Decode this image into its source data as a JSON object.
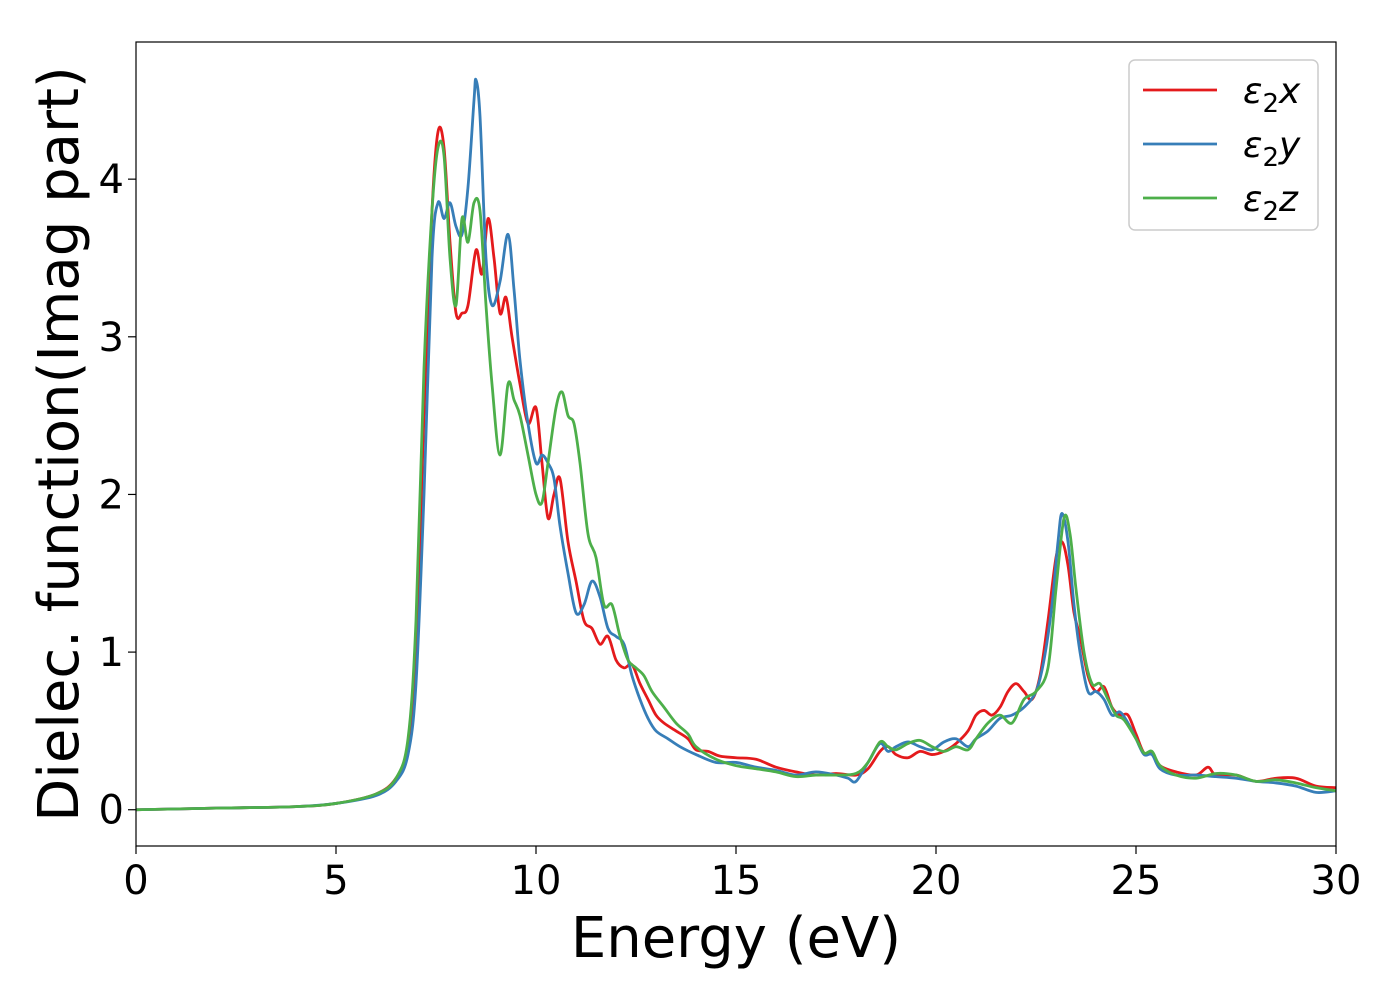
{
  "chart_data": {
    "type": "line",
    "title": "",
    "xlabel": "Energy (eV)",
    "ylabel": "Dielec. function(Imag part)",
    "xlim": [
      0,
      30
    ],
    "ylim": [
      -0.23,
      4.87
    ],
    "xticks": [
      0,
      5,
      10,
      15,
      20,
      25,
      30
    ],
    "yticks": [
      0,
      1,
      2,
      3,
      4
    ],
    "grid": false,
    "legend_position": "top-right",
    "series": [
      {
        "name": "ε₂x",
        "legend_base": "ε",
        "legend_sub": "2",
        "legend_tail": "x",
        "color": "#e41a1c",
        "x": [
          0,
          2,
          4,
          5,
          6,
          6.5,
          6.8,
          7.0,
          7.2,
          7.4,
          7.55,
          7.7,
          7.85,
          8.0,
          8.15,
          8.3,
          8.5,
          8.65,
          8.8,
          8.95,
          9.1,
          9.25,
          9.4,
          9.6,
          9.8,
          10.0,
          10.15,
          10.3,
          10.45,
          10.6,
          10.8,
          11.0,
          11.2,
          11.4,
          11.6,
          11.8,
          12.0,
          12.2,
          12.4,
          12.6,
          12.8,
          13.0,
          13.2,
          13.5,
          13.8,
          14.0,
          14.3,
          14.6,
          15.0,
          15.5,
          16.0,
          16.5,
          17.0,
          17.5,
          18.0,
          18.3,
          18.6,
          18.8,
          19.0,
          19.3,
          19.6,
          19.9,
          20.2,
          20.5,
          20.8,
          21.0,
          21.2,
          21.4,
          21.6,
          21.8,
          22.0,
          22.2,
          22.4,
          22.6,
          22.8,
          23.0,
          23.15,
          23.3,
          23.45,
          23.6,
          23.8,
          24.0,
          24.2,
          24.4,
          24.6,
          24.8,
          25.0,
          25.2,
          25.4,
          25.6,
          26.0,
          26.5,
          26.8,
          27.0,
          27.5,
          28.0,
          28.5,
          29.0,
          29.5,
          30.0
        ],
        "y": [
          0.0,
          0.01,
          0.02,
          0.04,
          0.1,
          0.2,
          0.4,
          1.0,
          2.5,
          3.8,
          4.3,
          4.2,
          3.6,
          3.15,
          3.15,
          3.2,
          3.55,
          3.4,
          3.75,
          3.5,
          3.15,
          3.25,
          3.0,
          2.7,
          2.45,
          2.55,
          2.2,
          1.85,
          2.0,
          2.1,
          1.7,
          1.45,
          1.2,
          1.15,
          1.05,
          1.1,
          0.95,
          0.9,
          0.92,
          0.8,
          0.7,
          0.6,
          0.55,
          0.5,
          0.45,
          0.38,
          0.37,
          0.34,
          0.33,
          0.32,
          0.27,
          0.24,
          0.22,
          0.23,
          0.22,
          0.26,
          0.37,
          0.4,
          0.35,
          0.33,
          0.37,
          0.35,
          0.37,
          0.42,
          0.5,
          0.6,
          0.63,
          0.6,
          0.65,
          0.75,
          0.8,
          0.75,
          0.7,
          0.85,
          1.2,
          1.6,
          1.7,
          1.55,
          1.25,
          1.1,
          0.85,
          0.75,
          0.78,
          0.65,
          0.6,
          0.6,
          0.48,
          0.36,
          0.36,
          0.28,
          0.24,
          0.22,
          0.27,
          0.22,
          0.22,
          0.18,
          0.2,
          0.2,
          0.15,
          0.14
        ]
      },
      {
        "name": "ε₂y",
        "legend_base": "ε",
        "legend_sub": "2",
        "legend_tail": "y",
        "color": "#377eb8",
        "x": [
          0,
          2,
          4,
          5,
          6,
          6.5,
          6.8,
          7.0,
          7.2,
          7.4,
          7.55,
          7.7,
          7.85,
          8.0,
          8.15,
          8.3,
          8.45,
          8.5,
          8.6,
          8.75,
          8.9,
          9.1,
          9.3,
          9.45,
          9.6,
          9.8,
          10.0,
          10.15,
          10.3,
          10.45,
          10.6,
          10.8,
          11.0,
          11.2,
          11.4,
          11.6,
          11.8,
          12.0,
          12.2,
          12.4,
          12.6,
          12.8,
          13.0,
          13.3,
          13.6,
          14.0,
          14.5,
          15.0,
          15.5,
          16.0,
          16.5,
          17.0,
          17.5,
          17.8,
          18.0,
          18.3,
          18.6,
          18.8,
          19.0,
          19.3,
          19.6,
          19.9,
          20.2,
          20.5,
          20.8,
          21.0,
          21.3,
          21.6,
          21.9,
          22.2,
          22.5,
          22.7,
          22.9,
          23.05,
          23.15,
          23.3,
          23.45,
          23.6,
          23.8,
          24.0,
          24.2,
          24.4,
          24.6,
          24.8,
          25.0,
          25.2,
          25.4,
          25.6,
          26.0,
          26.5,
          27.0,
          27.5,
          28.0,
          28.5,
          29.0,
          29.5,
          30.0
        ],
        "y": [
          0.0,
          0.01,
          0.02,
          0.04,
          0.09,
          0.18,
          0.35,
          0.8,
          2.0,
          3.5,
          3.85,
          3.75,
          3.85,
          3.7,
          3.65,
          3.95,
          4.5,
          4.63,
          4.4,
          3.5,
          3.2,
          3.35,
          3.65,
          3.3,
          2.85,
          2.45,
          2.2,
          2.25,
          2.2,
          2.1,
          1.8,
          1.5,
          1.25,
          1.3,
          1.45,
          1.35,
          1.15,
          1.1,
          1.05,
          0.85,
          0.7,
          0.58,
          0.5,
          0.45,
          0.4,
          0.35,
          0.3,
          0.3,
          0.27,
          0.25,
          0.22,
          0.24,
          0.22,
          0.2,
          0.18,
          0.3,
          0.42,
          0.37,
          0.4,
          0.43,
          0.4,
          0.38,
          0.43,
          0.45,
          0.4,
          0.45,
          0.5,
          0.58,
          0.6,
          0.65,
          0.75,
          0.95,
          1.3,
          1.7,
          1.88,
          1.7,
          1.3,
          1.0,
          0.75,
          0.75,
          0.7,
          0.6,
          0.62,
          0.55,
          0.45,
          0.35,
          0.35,
          0.26,
          0.22,
          0.22,
          0.21,
          0.2,
          0.18,
          0.17,
          0.15,
          0.11,
          0.12
        ]
      },
      {
        "name": "ε₂z",
        "legend_base": "ε",
        "legend_sub": "2",
        "legend_tail": "z",
        "color": "#4daf4a",
        "x": [
          0,
          2,
          4,
          5,
          6,
          6.5,
          6.8,
          7.0,
          7.2,
          7.4,
          7.55,
          7.7,
          7.85,
          8.0,
          8.15,
          8.3,
          8.45,
          8.6,
          8.75,
          8.9,
          9.1,
          9.3,
          9.45,
          9.6,
          9.8,
          10.0,
          10.15,
          10.3,
          10.5,
          10.65,
          10.8,
          10.95,
          11.1,
          11.3,
          11.5,
          11.7,
          11.9,
          12.1,
          12.3,
          12.5,
          12.7,
          12.9,
          13.2,
          13.5,
          13.8,
          14.0,
          14.5,
          15.0,
          15.5,
          16.0,
          16.5,
          17.0,
          17.5,
          18.0,
          18.3,
          18.6,
          18.8,
          19.0,
          19.3,
          19.6,
          19.9,
          20.2,
          20.5,
          20.8,
          21.0,
          21.3,
          21.6,
          21.9,
          22.2,
          22.5,
          22.8,
          23.0,
          23.2,
          23.35,
          23.5,
          23.7,
          23.9,
          24.1,
          24.3,
          24.5,
          24.7,
          25.0,
          25.2,
          25.4,
          25.6,
          26.0,
          26.5,
          27.0,
          27.5,
          28.0,
          28.5,
          29.0,
          29.5,
          30.0
        ],
        "y": [
          0.0,
          0.01,
          0.02,
          0.04,
          0.1,
          0.2,
          0.45,
          1.2,
          2.8,
          3.8,
          4.2,
          4.15,
          3.5,
          3.2,
          3.75,
          3.6,
          3.85,
          3.8,
          3.2,
          2.7,
          2.25,
          2.7,
          2.6,
          2.5,
          2.25,
          2.0,
          1.95,
          2.2,
          2.55,
          2.65,
          2.5,
          2.45,
          2.2,
          1.75,
          1.6,
          1.3,
          1.3,
          1.1,
          0.95,
          0.9,
          0.85,
          0.75,
          0.65,
          0.55,
          0.48,
          0.4,
          0.32,
          0.28,
          0.26,
          0.24,
          0.21,
          0.22,
          0.22,
          0.23,
          0.3,
          0.43,
          0.4,
          0.38,
          0.42,
          0.44,
          0.4,
          0.37,
          0.4,
          0.38,
          0.45,
          0.55,
          0.6,
          0.55,
          0.7,
          0.75,
          0.9,
          1.4,
          1.85,
          1.75,
          1.4,
          1.0,
          0.8,
          0.8,
          0.7,
          0.6,
          0.57,
          0.45,
          0.36,
          0.37,
          0.28,
          0.22,
          0.2,
          0.23,
          0.22,
          0.18,
          0.19,
          0.17,
          0.14,
          0.12
        ]
      }
    ]
  }
}
